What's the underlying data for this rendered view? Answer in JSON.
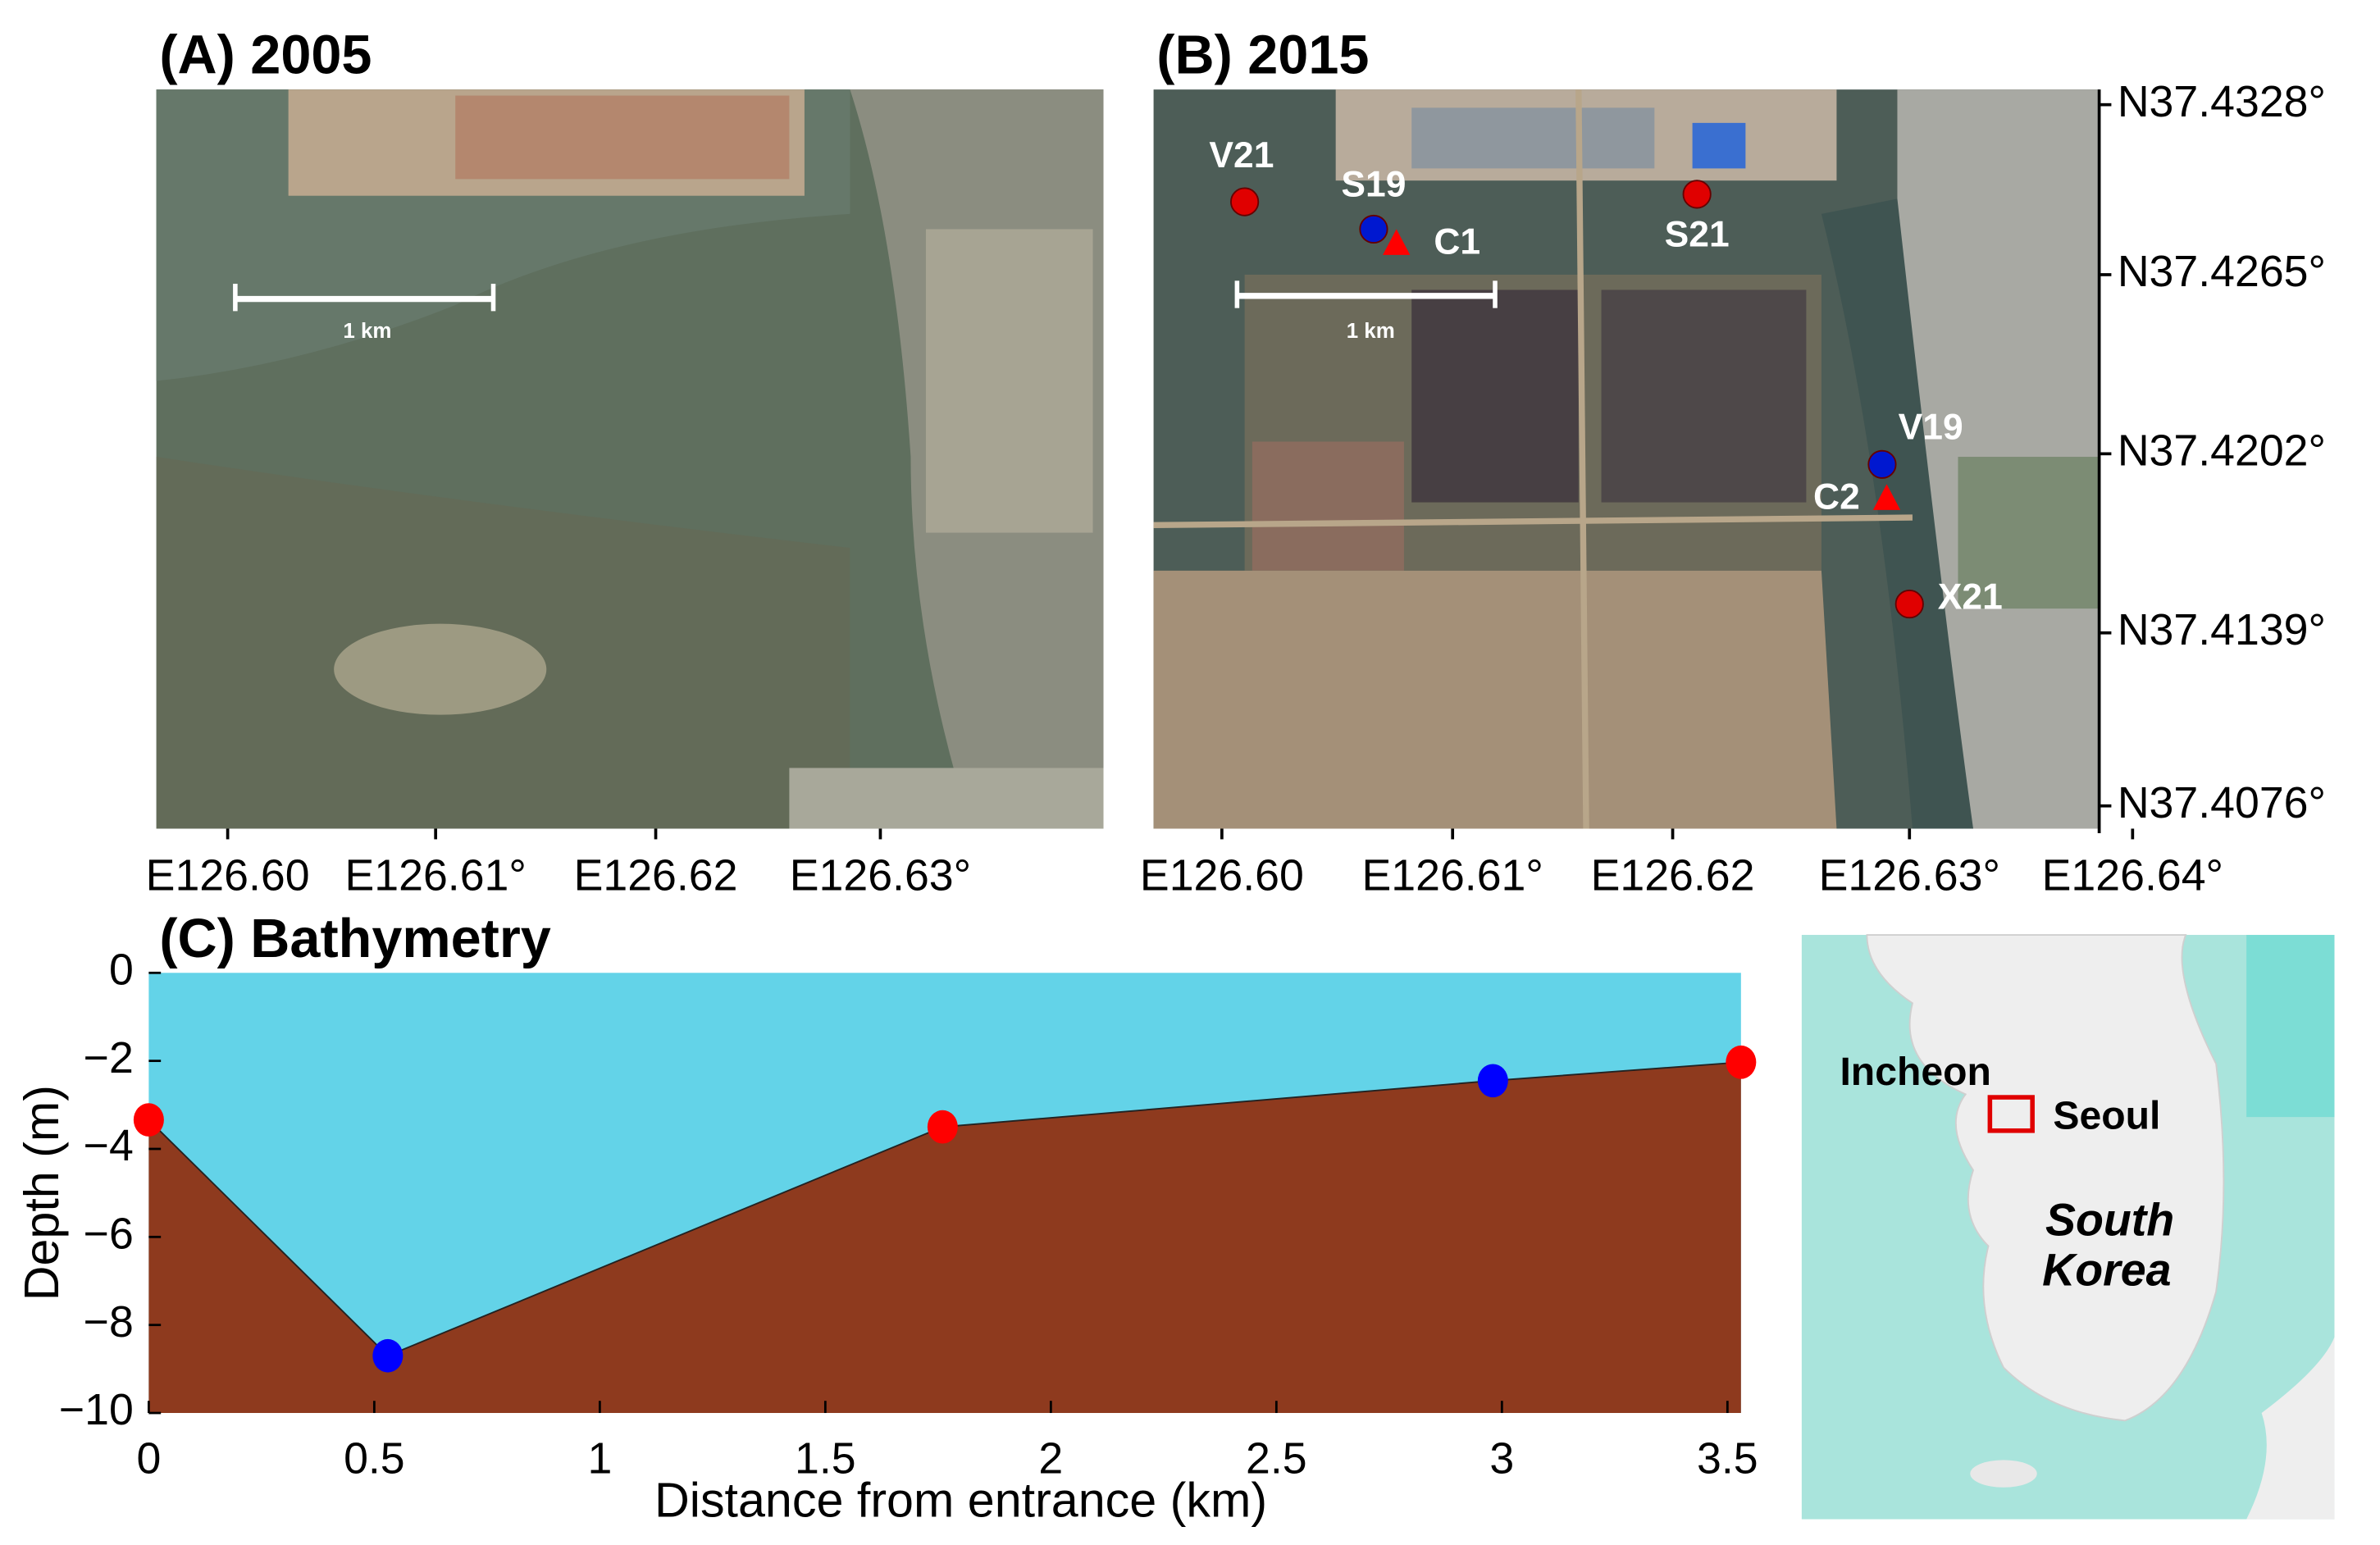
{
  "panel_a": {
    "title": "(A) 2005",
    "scale_bar": "1 km",
    "xtick_labels": [
      "E126.60",
      "E126.61°",
      "E126.62",
      "E126.63°"
    ]
  },
  "panel_b": {
    "title": "(B) 2015",
    "scale_bar": "1 km",
    "xtick_labels": [
      "E126.60",
      "E126.61°",
      "E126.62",
      "E126.63°",
      "E126.64°"
    ],
    "ytick_labels": [
      "N37.4328°",
      "N37.4265°",
      "N37.4202°",
      "N37.4139°",
      "N37.4076°"
    ],
    "stations": [
      "V21",
      "S19",
      "C1",
      "S21",
      "V19",
      "C2",
      "X21"
    ]
  },
  "chart_data": {
    "type": "area",
    "title": "(C) Bathymetry",
    "xlabel": "Distance from entrance (km)",
    "ylabel": "Depth (m)",
    "x": [
      0,
      0.53,
      1.76,
      2.98,
      3.53
    ],
    "values": [
      -3.34,
      -8.7,
      -3.5,
      -2.45,
      -2.03
    ],
    "point_colors": [
      "#ff0000",
      "#0000ff",
      "#ff0000",
      "#0000ff",
      "#ff0000"
    ],
    "water_color": "#63d3e8",
    "bed_color": "#8e3a1e",
    "xlim": [
      0,
      3.53
    ],
    "ylim": [
      -10,
      0
    ],
    "xticks": [
      0,
      0.5,
      1,
      1.5,
      2,
      2.5,
      3,
      3.5
    ],
    "yticks": [
      0,
      {
        "value": -2,
        "label": "−2"
      },
      {
        "value": -4,
        "label": "−4"
      },
      {
        "value": -6,
        "label": "−6"
      },
      {
        "value": -8,
        "label": "−8"
      },
      {
        "value": -10,
        "label": "−10"
      }
    ]
  },
  "inset_map": {
    "labels": [
      "Incheon",
      "Seoul",
      "South",
      "Korea"
    ]
  }
}
